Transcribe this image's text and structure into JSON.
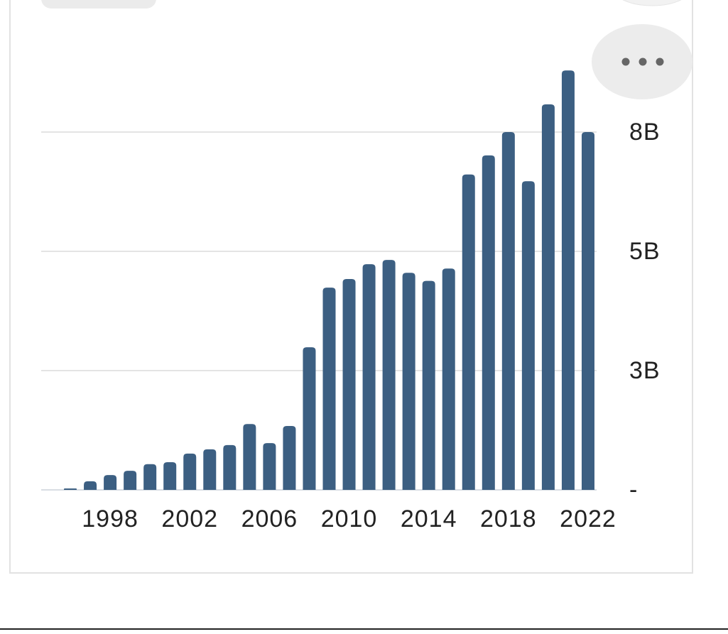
{
  "chart_data": {
    "type": "bar",
    "categories": [
      null,
      null,
      "1998",
      null,
      null,
      null,
      "2002",
      null,
      null,
      null,
      "2006",
      null,
      null,
      null,
      "2010",
      null,
      null,
      null,
      "2014",
      null,
      null,
      null,
      "2018",
      null,
      null,
      null,
      "2022"
    ],
    "values": [
      0.03,
      0.18,
      0.31,
      0.4,
      0.54,
      0.58,
      0.76,
      0.85,
      0.94,
      1.38,
      0.98,
      1.34,
      2.99,
      4.24,
      4.42,
      4.73,
      4.82,
      4.55,
      4.38,
      4.64,
      6.61,
      7.01,
      7.5,
      6.47,
      8.08,
      8.79,
      7.5
    ],
    "color": "#3c5f82",
    "ylim": [
      0,
      10.3
    ],
    "yticks": [
      {
        "value": 0,
        "label": "-"
      },
      {
        "value": 2.5,
        "label": "3B"
      },
      {
        "value": 5,
        "label": "5B"
      },
      {
        "value": 7.5,
        "label": "8B"
      }
    ],
    "grid": true
  }
}
